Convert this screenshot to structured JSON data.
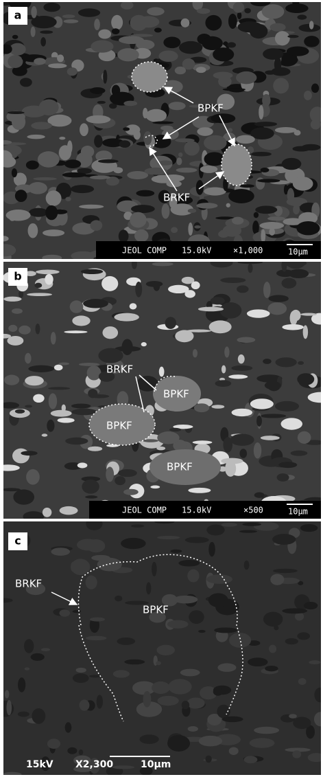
{
  "panels": [
    {
      "label": "a",
      "annotations": [
        "BPKF",
        "BRKF"
      ],
      "scale_bar": {
        "instrument": "JEOL COMP",
        "voltage": "15.0kV",
        "magnification": "×1,000",
        "scale": "10µm"
      }
    },
    {
      "label": "b",
      "annotations": [
        "BRKF",
        "BPKF",
        "BPKF",
        "BPKF"
      ],
      "scale_bar": {
        "instrument": "JEOL COMP",
        "voltage": "15.0kV",
        "magnification": "×500",
        "scale": "10µm"
      }
    },
    {
      "label": "c",
      "annotations": [
        "BRKF",
        "BPKF"
      ],
      "scale_bar": {
        "voltage": "15kV",
        "magnification": "X2,300",
        "scale": "10µm"
      }
    }
  ]
}
